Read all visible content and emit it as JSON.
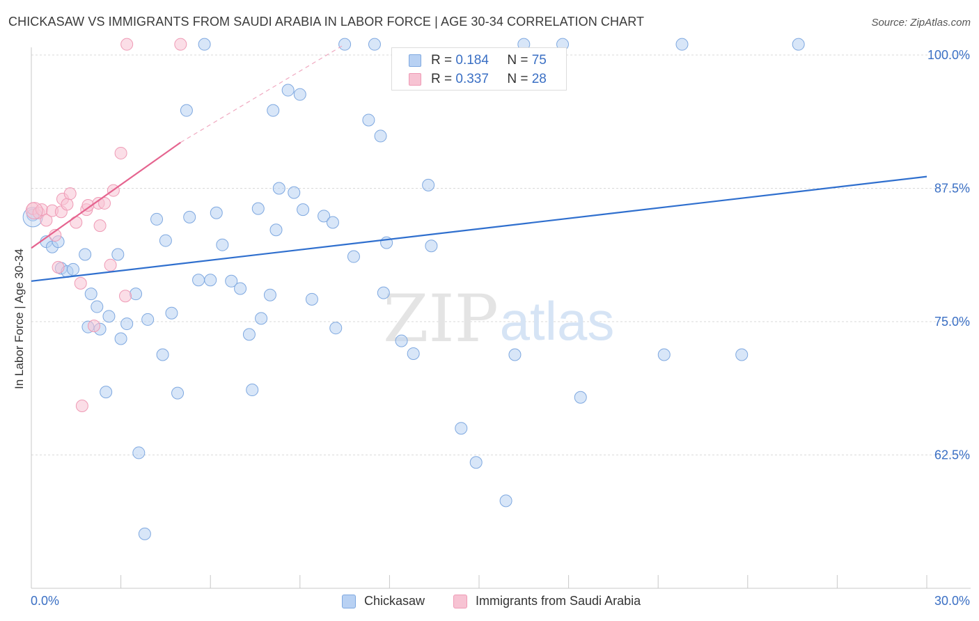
{
  "title": "CHICKASAW VS IMMIGRANTS FROM SAUDI ARABIA IN LABOR FORCE | AGE 30-34 CORRELATION CHART",
  "source": "Source: ZipAtlas.com",
  "watermark": {
    "zip": "ZIP",
    "atlas": "atlas"
  },
  "legend": {
    "series1": {
      "name": "Chickasaw",
      "r_label": "R =",
      "r_value": "0.184",
      "n_label": "N =",
      "n_value": "75"
    },
    "series2": {
      "name": "Immigrants from Saudi Arabia",
      "r_label": "R =",
      "r_value": "0.337",
      "n_label": "N =",
      "n_value": "28"
    }
  },
  "colors": {
    "blue_fill": "#b8d1f3",
    "blue_stroke": "#7ea8e0",
    "blue_line": "#2f6fce",
    "pink_fill": "#f7c3d3",
    "pink_stroke": "#ef9ab5",
    "pink_line": "#e5648f",
    "tick_label": "#3a6fc4",
    "grid": "#d9d9d9"
  },
  "chart_data": {
    "type": "scatter",
    "title": "CHICKASAW VS IMMIGRANTS FROM SAUDI ARABIA IN LABOR FORCE | AGE 30-34 CORRELATION CHART",
    "xlabel": "",
    "ylabel": "In Labor Force | Age 30-34",
    "xlim": [
      0,
      30
    ],
    "ylim": [
      51,
      102
    ],
    "x_tick_labels": [
      {
        "value": 0,
        "label": "0.0%"
      },
      {
        "value": 30,
        "label": "30.0%"
      }
    ],
    "y_tick_labels": [
      {
        "value": 100,
        "label": "100.0%"
      },
      {
        "value": 87.5,
        "label": "87.5%"
      },
      {
        "value": 75,
        "label": "75.0%"
      },
      {
        "value": 62.5,
        "label": "62.5%"
      }
    ],
    "series": [
      {
        "name": "Chickasaw",
        "trend": {
          "x": [
            0,
            30
          ],
          "y": [
            78.8,
            88.6
          ]
        },
        "points": [
          [
            0.05,
            85.0
          ],
          [
            0.5,
            82.5
          ],
          [
            0.7,
            82.0
          ],
          [
            0.9,
            82.5
          ],
          [
            1.0,
            80.0
          ],
          [
            1.2,
            79.7
          ],
          [
            1.4,
            79.9
          ],
          [
            1.8,
            81.3
          ],
          [
            1.9,
            74.5
          ],
          [
            2.0,
            77.6
          ],
          [
            2.2,
            76.4
          ],
          [
            2.3,
            74.3
          ],
          [
            2.5,
            68.4
          ],
          [
            2.6,
            75.5
          ],
          [
            2.9,
            81.3
          ],
          [
            3.0,
            73.4
          ],
          [
            3.2,
            74.8
          ],
          [
            3.5,
            77.6
          ],
          [
            3.6,
            62.7
          ],
          [
            3.8,
            55.1
          ],
          [
            3.9,
            75.2
          ],
          [
            4.2,
            84.6
          ],
          [
            4.4,
            71.9
          ],
          [
            4.5,
            82.6
          ],
          [
            4.7,
            75.8
          ],
          [
            4.9,
            68.3
          ],
          [
            5.2,
            94.8
          ],
          [
            5.3,
            84.8
          ],
          [
            5.6,
            78.9
          ],
          [
            5.8,
            101.0
          ],
          [
            6.0,
            78.9
          ],
          [
            6.2,
            85.2
          ],
          [
            6.4,
            82.2
          ],
          [
            6.7,
            78.8
          ],
          [
            7.0,
            78.1
          ],
          [
            7.3,
            73.8
          ],
          [
            7.4,
            68.6
          ],
          [
            7.6,
            85.6
          ],
          [
            7.7,
            75.3
          ],
          [
            8.0,
            77.5
          ],
          [
            8.1,
            94.8
          ],
          [
            8.2,
            83.6
          ],
          [
            8.3,
            87.5
          ],
          [
            8.6,
            96.7
          ],
          [
            8.8,
            87.1
          ],
          [
            9.0,
            96.3
          ],
          [
            9.1,
            85.5
          ],
          [
            9.4,
            77.1
          ],
          [
            9.8,
            84.9
          ],
          [
            10.1,
            84.3
          ],
          [
            10.2,
            74.4
          ],
          [
            10.5,
            101.0
          ],
          [
            10.8,
            81.1
          ],
          [
            11.3,
            93.9
          ],
          [
            11.5,
            101.0
          ],
          [
            11.7,
            92.4
          ],
          [
            11.8,
            77.7
          ],
          [
            11.9,
            82.4
          ],
          [
            12.4,
            73.2
          ],
          [
            12.8,
            72.0
          ],
          [
            13.3,
            87.8
          ],
          [
            13.4,
            82.1
          ],
          [
            14.4,
            65.0
          ],
          [
            14.9,
            61.8
          ],
          [
            15.9,
            58.2
          ],
          [
            16.2,
            71.9
          ],
          [
            16.5,
            101.0
          ],
          [
            17.8,
            101.0
          ],
          [
            18.4,
            67.9
          ],
          [
            21.2,
            71.9
          ],
          [
            21.8,
            101.0
          ],
          [
            23.8,
            71.9
          ],
          [
            25.7,
            101.0
          ]
        ]
      },
      {
        "name": "Immigrants from Saudi Arabia",
        "trend": {
          "x": [
            0,
            5.0
          ],
          "y": [
            81.9,
            91.8
          ]
        },
        "trend_dashed": {
          "x": [
            5.0,
            10.5
          ],
          "y": [
            91.8,
            101.0
          ]
        },
        "points": [
          [
            0.05,
            85.6
          ],
          [
            0.25,
            85.2
          ],
          [
            0.35,
            85.5
          ],
          [
            0.5,
            84.5
          ],
          [
            0.7,
            85.4
          ],
          [
            0.8,
            83.1
          ],
          [
            0.9,
            80.1
          ],
          [
            1.0,
            85.3
          ],
          [
            1.05,
            86.5
          ],
          [
            1.2,
            86.0
          ],
          [
            1.3,
            87.0
          ],
          [
            1.5,
            84.3
          ],
          [
            1.65,
            78.6
          ],
          [
            1.7,
            67.1
          ],
          [
            1.85,
            85.5
          ],
          [
            1.9,
            85.9
          ],
          [
            2.1,
            74.6
          ],
          [
            2.25,
            86.1
          ],
          [
            2.3,
            84.0
          ],
          [
            2.45,
            86.1
          ],
          [
            2.65,
            80.3
          ],
          [
            2.75,
            87.3
          ],
          [
            3.0,
            90.8
          ],
          [
            3.15,
            77.4
          ],
          [
            3.2,
            101.0
          ],
          [
            5.0,
            101.0
          ]
        ]
      }
    ]
  }
}
